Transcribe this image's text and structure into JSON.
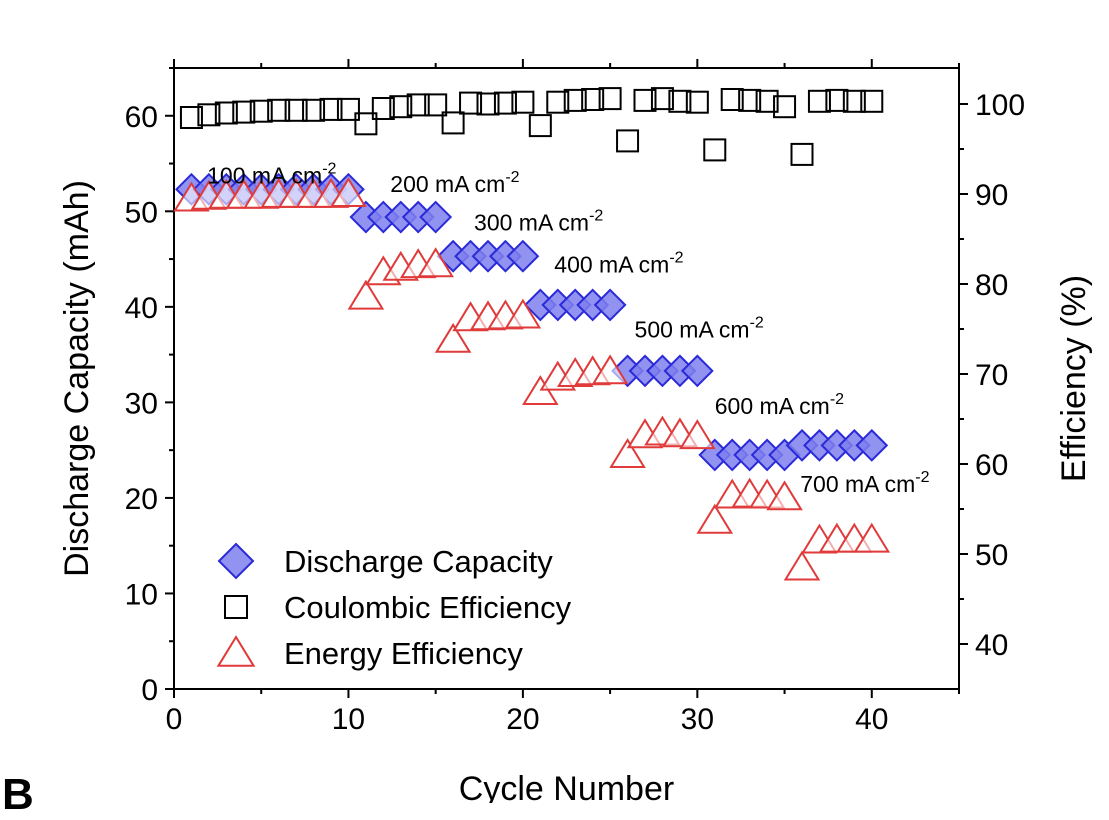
{
  "chart_data": {
    "type": "scatter",
    "xlabel": "Cycle Number",
    "ylabel": "Discharge Capacity (mAh)",
    "y2label": "Efficiency (%)",
    "xlim": [
      0,
      45
    ],
    "ylim": [
      0,
      65
    ],
    "y2lim": [
      35,
      104
    ],
    "xticks": [
      0,
      10,
      20,
      30,
      40
    ],
    "yticks": [
      0,
      10,
      20,
      30,
      40,
      50,
      60
    ],
    "y2ticks": [
      40,
      50,
      60,
      70,
      80,
      90,
      100
    ],
    "grid": false,
    "legend_position": "bottom-left",
    "series": [
      {
        "name": "Discharge Capacity",
        "axis": "left",
        "marker": "diamond",
        "color": "#2a2ad8",
        "fill": "#7f7fee",
        "x": [
          1,
          2,
          3,
          4,
          5,
          6,
          7,
          8,
          9,
          10,
          11,
          12,
          13,
          14,
          15,
          16,
          17,
          18,
          19,
          20,
          21,
          22,
          23,
          24,
          25,
          26,
          27,
          28,
          29,
          30,
          31,
          32,
          33,
          34,
          35,
          36,
          37,
          38,
          39,
          40
        ],
        "y": [
          52.3,
          52.3,
          52.3,
          52.3,
          52.3,
          52.3,
          52.3,
          52.3,
          52.3,
          52.3,
          49.4,
          49.4,
          49.4,
          49.4,
          49.4,
          45.3,
          45.3,
          45.3,
          45.3,
          45.3,
          40.2,
          40.2,
          40.2,
          40.2,
          40.2,
          33.3,
          33.3,
          33.3,
          33.3,
          33.3,
          24.5,
          24.5,
          24.5,
          24.5,
          24.5,
          25.5,
          25.5,
          25.5,
          25.5,
          25.5
        ]
      },
      {
        "name": "Coulombic Efficiency",
        "axis": "right",
        "marker": "square",
        "color": "#000000",
        "fill": "none",
        "x": [
          1,
          2,
          3,
          4,
          5,
          6,
          7,
          8,
          9,
          10,
          11,
          12,
          13,
          14,
          15,
          16,
          17,
          18,
          19,
          20,
          21,
          22,
          23,
          24,
          25,
          26,
          27,
          28,
          29,
          30,
          31,
          32,
          33,
          34,
          35,
          36,
          37,
          38,
          39,
          40
        ],
        "y": [
          98.5,
          98.8,
          99.0,
          99.1,
          99.2,
          99.3,
          99.3,
          99.3,
          99.4,
          99.4,
          97.8,
          99.5,
          99.7,
          99.9,
          99.9,
          97.9,
          100.1,
          100.0,
          100.1,
          100.2,
          97.6,
          100.2,
          100.4,
          100.5,
          100.6,
          95.9,
          100.4,
          100.6,
          100.3,
          100.2,
          94.9,
          100.5,
          100.4,
          100.3,
          99.7,
          94.4,
          100.3,
          100.4,
          100.3,
          100.3
        ]
      },
      {
        "name": "Energy Efficiency",
        "axis": "right",
        "marker": "triangle",
        "color": "#e03a3a",
        "fill": "none",
        "x": [
          1,
          2,
          3,
          4,
          5,
          6,
          7,
          8,
          9,
          10,
          11,
          12,
          13,
          14,
          15,
          16,
          17,
          18,
          19,
          20,
          21,
          22,
          23,
          24,
          25,
          26,
          27,
          28,
          29,
          30,
          31,
          32,
          33,
          34,
          35,
          36,
          37,
          38,
          39,
          40
        ],
        "y": [
          89.5,
          89.7,
          89.8,
          89.8,
          89.8,
          89.9,
          89.9,
          89.9,
          89.9,
          90.0,
          78.6,
          81.3,
          81.8,
          82.1,
          82.2,
          73.8,
          76.2,
          76.3,
          76.4,
          76.5,
          68.0,
          69.6,
          70.0,
          70.2,
          70.3,
          61.0,
          63.2,
          63.5,
          63.3,
          63.1,
          53.7,
          56.5,
          56.6,
          56.5,
          56.3,
          48.5,
          51.5,
          51.6,
          51.6,
          51.6
        ]
      }
    ],
    "annotations": [
      {
        "base": "100 mA cm",
        "sup": "-2",
        "at": [
          1.9,
          52.9
        ]
      },
      {
        "base": "200 mA cm",
        "sup": "-2",
        "at": [
          12.4,
          52.0
        ]
      },
      {
        "base": "300 mA cm",
        "sup": "-2",
        "at": [
          17.2,
          48.0
        ]
      },
      {
        "base": "400 mA cm",
        "sup": "-2",
        "at": [
          21.8,
          43.6
        ]
      },
      {
        "base": "500 mA cm",
        "sup": "-2",
        "at": [
          26.4,
          36.8
        ]
      },
      {
        "base": "600 mA cm",
        "sup": "-2",
        "at": [
          31.0,
          28.8
        ]
      },
      {
        "base": "700 mA cm",
        "sup": "-2",
        "at": [
          35.9,
          20.6
        ]
      }
    ]
  },
  "panel_label": "B"
}
